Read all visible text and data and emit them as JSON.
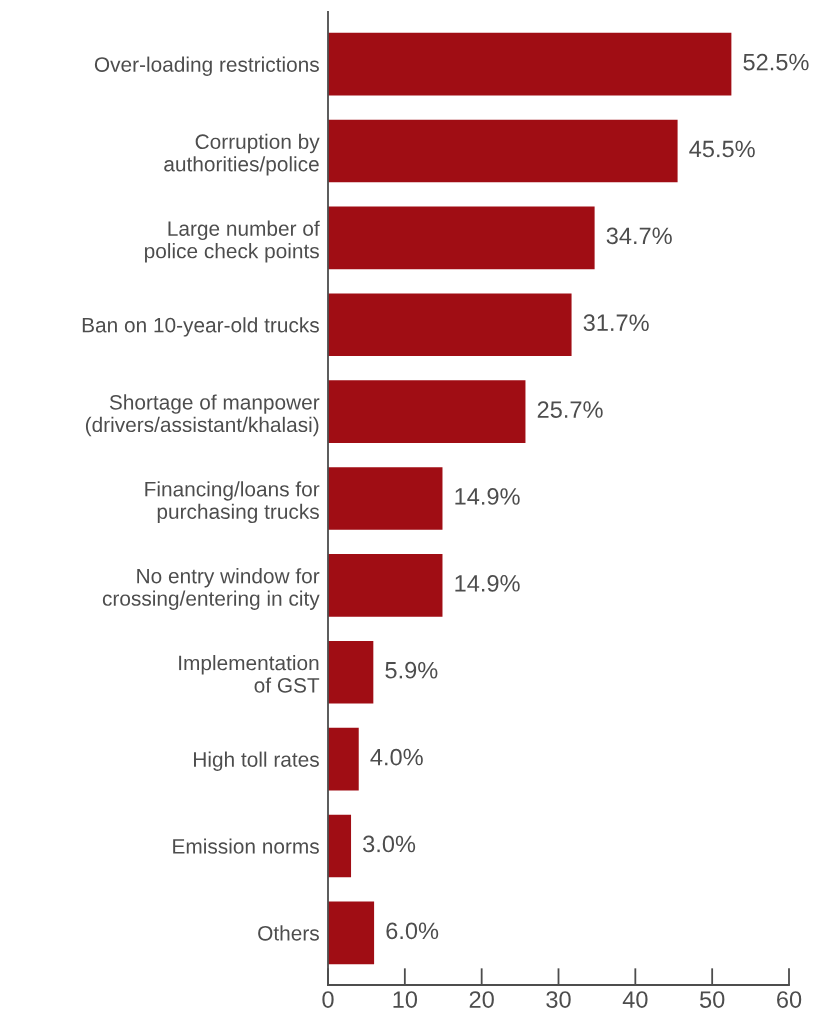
{
  "chart_data": {
    "type": "bar",
    "orientation": "horizontal",
    "categories": [
      "Over-loading restrictions",
      "Corruption by\nauthorities/police",
      "Large number of\npolice check points",
      "Ban on 10-year-old trucks",
      "Shortage of manpower\n(drivers/assistant/khalasi)",
      "Financing/loans for\npurchasing trucks",
      "No entry window for\ncrossing/entering in city",
      "Implementation\nof GST",
      "High toll rates",
      "Emission norms",
      "Others"
    ],
    "values": [
      52.5,
      45.5,
      34.7,
      31.7,
      25.7,
      14.9,
      14.9,
      5.9,
      4.0,
      3.0,
      6.0
    ],
    "value_labels": [
      "52.5%",
      "45.5%",
      "34.7%",
      "31.7%",
      "25.7%",
      "14.9%",
      "14.9%",
      "5.9%",
      "4.0%",
      "3.0%",
      "6.0%"
    ],
    "color": "#a00d14",
    "xlim": [
      0,
      60
    ],
    "xticks": [
      0,
      10,
      20,
      30,
      40,
      50,
      60
    ],
    "grid": false,
    "legend": false
  }
}
